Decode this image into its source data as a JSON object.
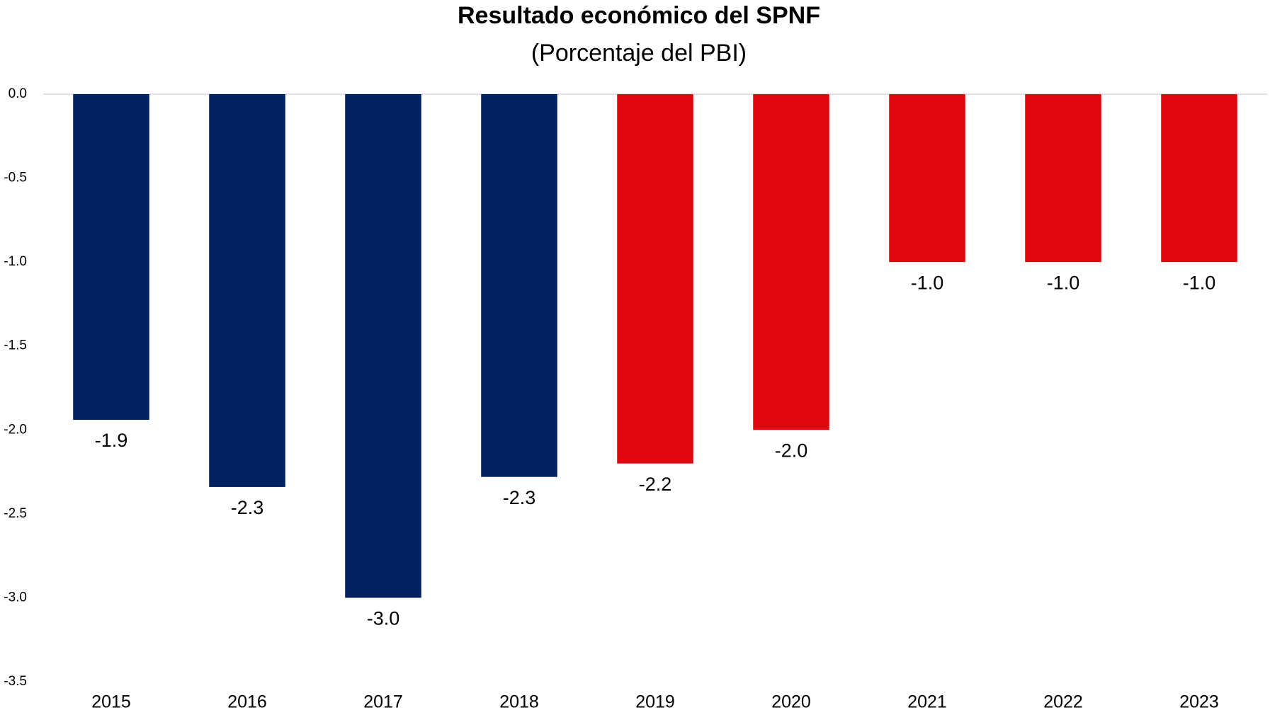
{
  "chart_data": {
    "type": "bar",
    "title": "Resultado económico del SPNF",
    "subtitle": "(Porcentaje del PBI)",
    "categories": [
      "2015",
      "2016",
      "2017",
      "2018",
      "2019",
      "2020",
      "2021",
      "2022",
      "2023"
    ],
    "values": [
      -1.94,
      -2.34,
      -3.0,
      -2.28,
      -2.2,
      -2.0,
      -1.0,
      -1.0,
      -1.0
    ],
    "value_labels": [
      "-1.9",
      "-2.3",
      "-3.0",
      "-2.3",
      "-2.2",
      "-2.0",
      "-1.0",
      "-1.0",
      "-1.0"
    ],
    "colors": [
      "#002060",
      "#002060",
      "#002060",
      "#002060",
      "#e0070e",
      "#e0070e",
      "#e0070e",
      "#e0070e",
      "#e0070e"
    ],
    "value_label_colors": [
      "#000000",
      "#000000",
      "#000000",
      "#000000",
      "#c00000",
      "#c00000",
      "#c00000",
      "#c00000",
      "#c00000"
    ],
    "ylim": [
      -3.5,
      0
    ],
    "yticks": [
      {
        "value": 0,
        "label": "0.0"
      },
      {
        "value": -0.5,
        "label": "-0.5"
      },
      {
        "value": -1,
        "label": "-1.0"
      },
      {
        "value": -1.5,
        "label": "-1.5"
      },
      {
        "value": -2,
        "label": "-2.0"
      },
      {
        "value": -2.5,
        "label": "-2.5"
      },
      {
        "value": -3,
        "label": "-3.0"
      },
      {
        "value": -3.5,
        "label": "-3.5"
      }
    ],
    "grid": false
  }
}
